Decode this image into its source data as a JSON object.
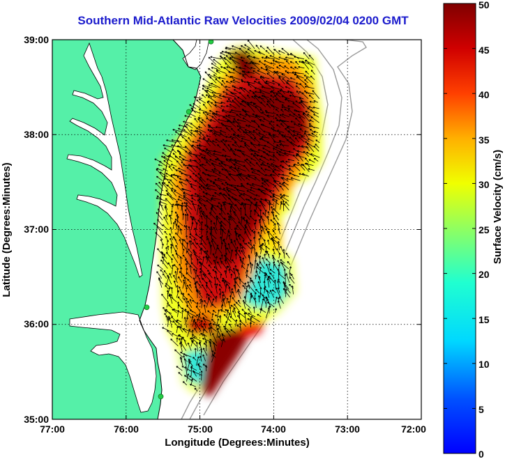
{
  "title": "Southern Mid-Atlantic Raw Velocities 2009/02/04 0200 GMT",
  "x_axis": {
    "label": "Longitude (Degrees:Minutes)",
    "ticks": [
      "77:00",
      "76:00",
      "75:00",
      "74:00",
      "73:00",
      "72:00"
    ]
  },
  "y_axis": {
    "label": "Latitude (Degrees:Minutes)",
    "ticks": [
      "39:00",
      "38:00",
      "37:00",
      "36:00",
      "35:00"
    ]
  },
  "colorbar": {
    "label": "Surface Velocity (cm/s)",
    "ticks": [
      "50",
      "45",
      "40",
      "35",
      "30",
      "25",
      "20",
      "15",
      "10",
      "5",
      "0"
    ],
    "range": [
      0,
      50
    ],
    "colormap": "jet"
  },
  "colors": {
    "title": "#1a1acc",
    "land": "#55f0a8",
    "ocean": "#ffffff",
    "coastline": "#000000",
    "bathymetry": "#9a9a9a",
    "grid": "#000000",
    "arrows": "#000000",
    "station": "#22cc44"
  },
  "map_extent": {
    "lon": [
      -77,
      -72
    ],
    "lat": [
      35,
      39
    ]
  },
  "stations": [
    {
      "lon": -74.85,
      "lat": 38.98
    },
    {
      "lon": -75.15,
      "lat": 38.24
    },
    {
      "lon": -75.72,
      "lat": 36.18
    },
    {
      "lon": -75.53,
      "lat": 35.24
    }
  ]
}
